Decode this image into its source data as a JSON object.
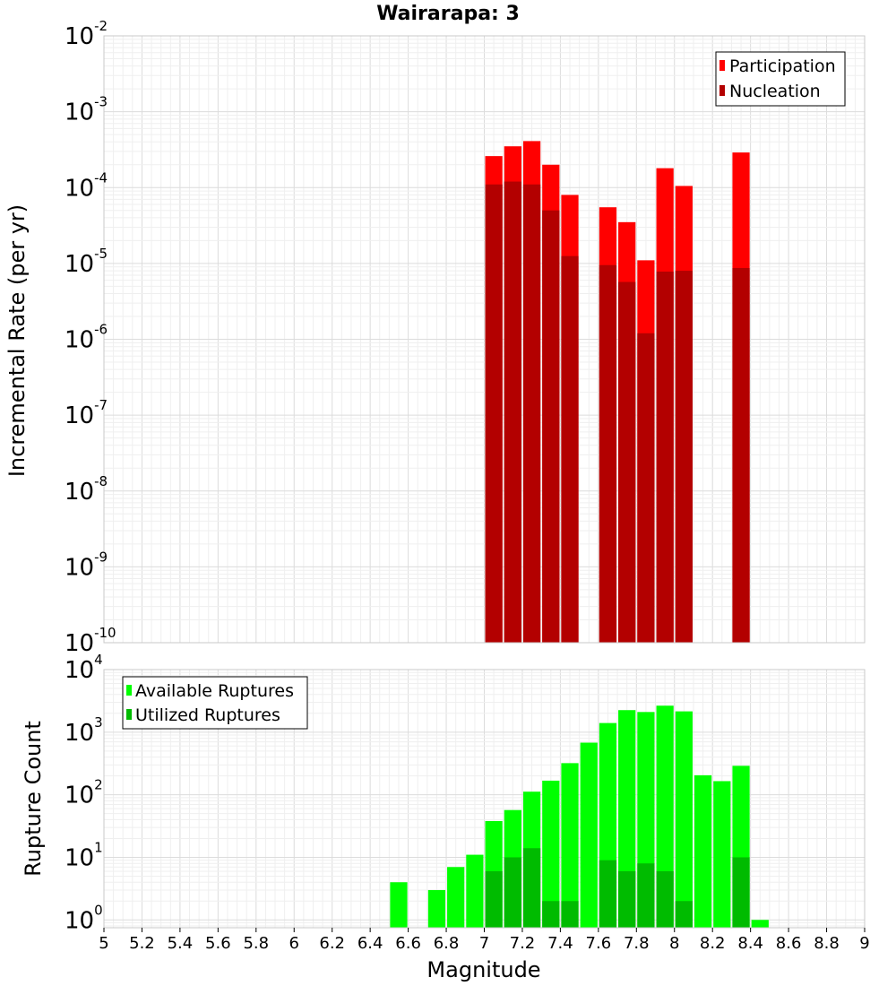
{
  "chart_data": [
    {
      "type": "bar",
      "title": "Wairarapa: 3",
      "xlabel": "",
      "ylabel": "Incremental Rate (per yr)",
      "yscale": "log",
      "xlim": [
        5,
        9
      ],
      "ylim": [
        1e-10,
        0.01
      ],
      "grid": true,
      "legend_position": "top-right",
      "bar_width": 0.1,
      "series": [
        {
          "name": "Participation",
          "color": "#ff0000",
          "x": [
            7.05,
            7.15,
            7.25,
            7.35,
            7.45,
            7.65,
            7.75,
            7.85,
            7.95,
            8.05,
            8.35
          ],
          "values": [
            0.00026,
            0.00035,
            0.00041,
            0.0002,
            8e-05,
            5.5e-05,
            3.5e-05,
            1.1e-05,
            0.00018,
            0.000105,
            0.00029
          ]
        },
        {
          "name": "Nucleation",
          "color": "#b30000",
          "x": [
            7.05,
            7.15,
            7.25,
            7.35,
            7.45,
            7.65,
            7.75,
            7.85,
            7.95,
            8.05,
            8.35
          ],
          "values": [
            0.00011,
            0.00012,
            0.00011,
            5e-05,
            1.25e-05,
            9.5e-06,
            5.7e-06,
            1.2e-06,
            7.8e-06,
            8e-06,
            8.7e-06
          ]
        }
      ],
      "yticks": [
        {
          "base": "10",
          "exp": "-2"
        },
        {
          "base": "10",
          "exp": "-3"
        },
        {
          "base": "10",
          "exp": "-4"
        },
        {
          "base": "10",
          "exp": "-5"
        },
        {
          "base": "10",
          "exp": "-6"
        },
        {
          "base": "10",
          "exp": "-7"
        },
        {
          "base": "10",
          "exp": "-8"
        },
        {
          "base": "10",
          "exp": "-9"
        },
        {
          "base": "10",
          "exp": "-10"
        }
      ]
    },
    {
      "type": "bar",
      "title": "",
      "xlabel": "Magnitude",
      "ylabel": "Rupture Count",
      "yscale": "log",
      "xlim": [
        5,
        9
      ],
      "ylim": [
        0.75,
        10000
      ],
      "grid": true,
      "legend_position": "top-left",
      "bar_width": 0.1,
      "series": [
        {
          "name": "Available Ruptures",
          "color": "#00ff00",
          "x": [
            6.55,
            6.75,
            6.85,
            6.95,
            7.05,
            7.15,
            7.25,
            7.35,
            7.45,
            7.55,
            7.65,
            7.75,
            7.85,
            7.95,
            8.05,
            8.15,
            8.25,
            8.35,
            8.45
          ],
          "values": [
            4,
            3,
            7,
            11,
            38,
            57,
            112,
            168,
            320,
            680,
            1400,
            2250,
            2100,
            2650,
            2150,
            205,
            165,
            290,
            1
          ]
        },
        {
          "name": "Utilized Ruptures",
          "color": "#00bb00",
          "x": [
            7.05,
            7.15,
            7.25,
            7.35,
            7.45,
            7.65,
            7.75,
            7.85,
            7.95,
            8.05,
            8.35
          ],
          "values": [
            6,
            10,
            14,
            2,
            2,
            9,
            6,
            8,
            6,
            2,
            10
          ]
        }
      ],
      "yticks": [
        {
          "base": "10",
          "exp": "4"
        },
        {
          "base": "10",
          "exp": "3"
        },
        {
          "base": "10",
          "exp": "2"
        },
        {
          "base": "10",
          "exp": "1"
        },
        {
          "base": "10",
          "exp": "0"
        }
      ]
    }
  ],
  "xtick_labels": [
    "5",
    "5.2",
    "5.4",
    "5.6",
    "5.8",
    "6",
    "6.2",
    "6.4",
    "6.6",
    "6.8",
    "7",
    "7.2",
    "7.4",
    "7.6",
    "7.8",
    "8",
    "8.2",
    "8.4",
    "8.6",
    "8.8",
    "9"
  ]
}
